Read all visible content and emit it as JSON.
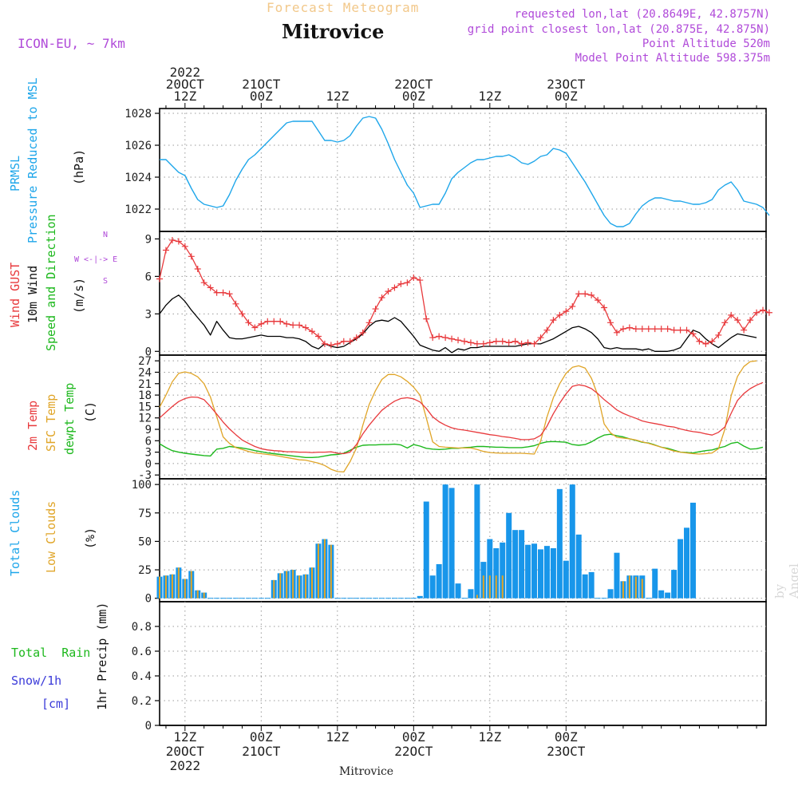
{
  "header": {
    "product": "Forecast Meteogram",
    "location": "Mitrovice",
    "model": "ICON-EU, ~ 7km",
    "requested": "requested lon,lat (20.8649E, 42.8757N)",
    "gridpoint": "grid point closest lon,lat (20.875E, 42.875N)",
    "point_altitude": "Point Altitude 520m",
    "model_altitude": "Model Point Altitude 598.375m",
    "footer_location": "Mitrovice",
    "watermark": "by Angel"
  },
  "time_axis": {
    "top_labels": [
      {
        "h": 12,
        "lines": [
          "2022",
          "20OCT",
          "12Z"
        ]
      },
      {
        "h": 24,
        "lines": [
          "21OCT",
          "00Z"
        ]
      },
      {
        "h": 36,
        "lines": [
          "12Z"
        ]
      },
      {
        "h": 48,
        "lines": [
          "22OCT",
          "00Z"
        ]
      },
      {
        "h": 60,
        "lines": [
          "12Z"
        ]
      },
      {
        "h": 72,
        "lines": [
          "23OCT",
          "00Z"
        ]
      }
    ],
    "bottom_labels": [
      {
        "h": 12,
        "lines": [
          "12Z",
          "20OCT",
          "2022"
        ]
      },
      {
        "h": 24,
        "lines": [
          "00Z",
          "21OCT"
        ]
      },
      {
        "h": 36,
        "lines": [
          "12Z"
        ]
      },
      {
        "h": 48,
        "lines": [
          "00Z",
          "22OCT"
        ]
      },
      {
        "h": 60,
        "lines": [
          "12Z"
        ]
      },
      {
        "h": 72,
        "lines": [
          "00Z",
          "23OCT"
        ]
      }
    ]
  },
  "labels": {
    "pressure": [
      "PRMSL",
      "Pressure Reduced to MSL",
      "(hPa)"
    ],
    "wind": [
      "Wind GUST",
      "10m Wind",
      "Speed and Direction",
      "(m/s)"
    ],
    "compass": [
      "N",
      "W <-|-> E",
      "S"
    ],
    "temp": [
      "2m Temp",
      "SFC Temp",
      "dewpt Temp",
      "(C)"
    ],
    "clouds": [
      "Total Clouds",
      "Low Clouds",
      "(%)"
    ],
    "precip": [
      "Total  Rain",
      "Snow/1h",
      "[cm]",
      "1hr Precip (mm)"
    ]
  },
  "colors": {
    "pressure": "#1ea6ea",
    "gust": "#e8393c",
    "wind": "#000000",
    "t2m": "#e8393c",
    "sfc": "#e0a528",
    "dewpt": "#1db81d",
    "total_clouds": "#1896ea",
    "low_clouds": "#e0a528",
    "rain": "#1db81d",
    "snow": "#3b3bd9",
    "violet": "#b04ad9"
  },
  "chart_data": [
    {
      "type": "line",
      "panel": "pressure",
      "ylabel": "(hPa)",
      "ylim": [
        1020.6,
        1028.3
      ],
      "yticks": [
        1022,
        1024,
        1026,
        1028
      ],
      "x_hours_start": 8,
      "x_step_hours": 1,
      "series": [
        {
          "name": "PRMSL",
          "values": [
            1025.1,
            1025.1,
            1024.7,
            1024.3,
            1024.1,
            1023.3,
            1022.6,
            1022.3,
            1022.2,
            1022.1,
            1022.2,
            1022.9,
            1023.8,
            1024.5,
            1025.1,
            1025.4,
            1025.8,
            1026.2,
            1026.6,
            1027,
            1027.4,
            1027.5,
            1027.5,
            1027.5,
            1027.5,
            1026.9,
            1026.3,
            1026.3,
            1026.2,
            1026.3,
            1026.6,
            1027.2,
            1027.7,
            1027.8,
            1027.7,
            1027,
            1026.1,
            1025.1,
            1024.3,
            1023.5,
            1023,
            1022.1,
            1022.2,
            1022.3,
            1022.3,
            1023,
            1023.9,
            1024.3,
            1024.6,
            1024.9,
            1025.1,
            1025.1,
            1025.2,
            1025.3,
            1025.3,
            1025.4,
            1025.2,
            1024.9,
            1024.8,
            1025,
            1025.3,
            1025.4,
            1025.8,
            1025.7,
            1025.5,
            1024.9,
            1024.3,
            1023.7,
            1023,
            1022.3,
            1021.6,
            1021.1,
            1020.9,
            1020.9,
            1021.1,
            1021.7,
            1022.2,
            1022.5,
            1022.7,
            1022.7,
            1022.6,
            1022.5,
            1022.5,
            1022.4,
            1022.3,
            1022.3,
            1022.4,
            1022.6,
            1023.2,
            1023.5,
            1023.7,
            1023.2,
            1022.5,
            1022.4,
            1022.3,
            1022.1,
            1021.6
          ]
        }
      ]
    },
    {
      "type": "line",
      "panel": "wind",
      "ylabel": "(m/s)",
      "ylim": [
        -0.3,
        9.6
      ],
      "yticks": [
        0,
        3,
        6,
        9
      ],
      "x_hours_start": 8,
      "x_step_hours": 1,
      "series": [
        {
          "name": "Wind GUST",
          "values": [
            5.8,
            8.1,
            8.9,
            8.8,
            8.4,
            7.6,
            6.6,
            5.5,
            5.1,
            4.7,
            4.7,
            4.6,
            3.8,
            3,
            2.3,
            1.9,
            2.2,
            2.4,
            2.4,
            2.4,
            2.2,
            2.1,
            2.1,
            1.9,
            1.6,
            1.2,
            0.6,
            0.5,
            0.6,
            0.8,
            0.8,
            1.1,
            1.5,
            2.3,
            3.4,
            4.3,
            4.8,
            5.1,
            5.4,
            5.5,
            5.9,
            5.7,
            2.6,
            1.1,
            1.2,
            1.1,
            1,
            0.9,
            0.8,
            0.7,
            0.6,
            0.6,
            0.7,
            0.8,
            0.8,
            0.7,
            0.8,
            0.6,
            0.7,
            0.6,
            1.1,
            1.7,
            2.5,
            2.9,
            3.2,
            3.6,
            4.6,
            4.6,
            4.5,
            4.1,
            3.5,
            2.3,
            1.5,
            1.8,
            1.9,
            1.8,
            1.8,
            1.8,
            1.8,
            1.8,
            1.8,
            1.7,
            1.7,
            1.7,
            1.4,
            0.8,
            0.6,
            0.8,
            1.3,
            2.3,
            2.9,
            2.5,
            1.7,
            2.5,
            3.1,
            3.3,
            3.1
          ]
        },
        {
          "name": "10m Wind",
          "values": [
            3,
            3.7,
            4.2,
            4.5,
            4,
            3.3,
            2.7,
            2.1,
            1.3,
            2.4,
            1.7,
            1.1,
            1,
            1,
            1.1,
            1.2,
            1.3,
            1.2,
            1.2,
            1.2,
            1.1,
            1.1,
            1,
            0.8,
            0.4,
            0.2,
            0.6,
            0.4,
            0.3,
            0.4,
            0.7,
            1,
            1.4,
            2,
            2.4,
            2.5,
            2.4,
            2.7,
            2.4,
            1.8,
            1.2,
            0.5,
            0.3,
            0.1,
            0,
            0.3,
            -0.1,
            0.2,
            0.1,
            0.3,
            0.3,
            0.4,
            0.4,
            0.4,
            0.4,
            0.4,
            0.4,
            0.5,
            0.6,
            0.6,
            0.6,
            0.8,
            1,
            1.3,
            1.6,
            1.9,
            2,
            1.8,
            1.5,
            1,
            0.3,
            0.2,
            0.3,
            0.2,
            0.2,
            0.2,
            0.1,
            0.2,
            0,
            0,
            0,
            0.1,
            0.3,
            1,
            1.7,
            1.5,
            1,
            0.6,
            0.3,
            0.7,
            1.1,
            1.4,
            1.3,
            1.2,
            1.1
          ]
        }
      ]
    },
    {
      "type": "line",
      "panel": "temperature",
      "ylabel": "(C)",
      "ylim": [
        -4,
        28.5
      ],
      "yticks": [
        -3,
        0,
        3,
        6,
        9,
        12,
        15,
        18,
        21,
        24,
        27
      ],
      "x_hours_start": 8,
      "x_step_hours": 1,
      "series": [
        {
          "name": "2m Temp",
          "values": [
            12,
            13.5,
            15,
            16.3,
            17.1,
            17.5,
            17.4,
            16.8,
            15,
            13,
            10.9,
            9.1,
            7.6,
            6.2,
            5.3,
            4.5,
            3.9,
            3.6,
            3.4,
            3.3,
            3.1,
            3.1,
            3,
            3,
            2.9,
            3,
            3,
            3.1,
            2.7,
            2.6,
            3,
            5,
            7.8,
            10.1,
            12.1,
            14,
            15.3,
            16.4,
            17.1,
            17.3,
            17,
            16.2,
            14.5,
            12.3,
            11,
            10.1,
            9.4,
            9,
            8.8,
            8.5,
            8.2,
            7.9,
            7.6,
            7.4,
            7.1,
            6.9,
            6.6,
            6.3,
            6.3,
            6.5,
            7.4,
            9.8,
            13.1,
            15.9,
            18.3,
            20.3,
            20.7,
            20.4,
            19.7,
            18.4,
            16.8,
            15.5,
            14.1,
            13.2,
            12.5,
            11.9,
            11.2,
            10.8,
            10.5,
            10.2,
            9.8,
            9.6,
            9.1,
            8.7,
            8.4,
            8.2,
            7.8,
            7.5,
            8.2,
            9.6,
            13.2,
            16.6,
            18.4,
            19.7,
            20.6,
            21.3
          ]
        },
        {
          "name": "SFC Temp",
          "values": [
            14.8,
            18,
            21.5,
            23.7,
            24.1,
            23.7,
            22.8,
            21,
            17.5,
            12.3,
            7,
            5.3,
            4.2,
            3.7,
            3.2,
            2.8,
            2.6,
            2.4,
            2.2,
            1.9,
            1.6,
            1.3,
            1,
            0.9,
            0.5,
            0.1,
            -0.5,
            -1.5,
            -2.1,
            -2.2,
            0.5,
            4.1,
            10.1,
            15.5,
            19.2,
            22.1,
            23.4,
            23.4,
            22.8,
            21.6,
            20.1,
            18,
            12,
            5.7,
            4.5,
            4.3,
            4.2,
            4.1,
            4.1,
            4.1,
            3.7,
            3.2,
            2.9,
            2.8,
            2.7,
            2.7,
            2.7,
            2.7,
            2.6,
            2.5,
            5.9,
            12.2,
            17.3,
            21,
            23.7,
            25.3,
            25.7,
            25.1,
            22.4,
            18,
            10.4,
            8.1,
            6.9,
            6.7,
            6.5,
            6.2,
            5.7,
            5.3,
            4.8,
            4.3,
            3.8,
            3.3,
            3,
            2.8,
            2.6,
            2.5,
            2.6,
            2.8,
            3.9,
            9,
            17.8,
            22.9,
            25.5,
            26.8,
            27
          ]
        },
        {
          "name": "dewpt Temp",
          "values": [
            5.2,
            4.2,
            3.4,
            3,
            2.7,
            2.5,
            2.3,
            2.1,
            2,
            3.8,
            4,
            4.5,
            4.3,
            4.1,
            3.8,
            3.4,
            3.1,
            2.8,
            2.6,
            2.4,
            2.2,
            2,
            1.8,
            1.6,
            1.6,
            1.7,
            2,
            2.3,
            2.4,
            2.7,
            3.5,
            4.3,
            4.8,
            4.9,
            4.9,
            5,
            5,
            5.1,
            4.9,
            4.1,
            5,
            4.6,
            4,
            3.8,
            3.7,
            3.8,
            4,
            4,
            4.2,
            4.3,
            4.5,
            4.5,
            4.4,
            4.3,
            4.3,
            4.2,
            4.2,
            4.2,
            4.4,
            4.7,
            5.3,
            5.7,
            5.8,
            5.7,
            5.6,
            5,
            4.8,
            5,
            5.7,
            6.7,
            7.5,
            7.7,
            7.3,
            7,
            6.5,
            6.1,
            5.6,
            5.4,
            4.9,
            4.3,
            4,
            3.5,
            3,
            2.9,
            2.8,
            3.1,
            3.4,
            3.6,
            4.1,
            4.5,
            5.3,
            5.6,
            4.6,
            3.8,
            3.9,
            4.3
          ]
        }
      ]
    },
    {
      "type": "bar",
      "panel": "clouds",
      "ylabel": "(%)",
      "ylim": [
        -3,
        105
      ],
      "yticks": [
        0,
        25,
        50,
        75,
        100
      ],
      "x_hours_start": 8,
      "x_step_hours": 1,
      "series": [
        {
          "name": "Total Clouds",
          "values": [
            19,
            20,
            21,
            27,
            17,
            24,
            7,
            5,
            0,
            0,
            0,
            0,
            0,
            0,
            0,
            0,
            0,
            0,
            16,
            22,
            24,
            25,
            20,
            21,
            27,
            48,
            52,
            47,
            0,
            0,
            0,
            0,
            0,
            0,
            0,
            0,
            0,
            0,
            0,
            0,
            0,
            2,
            85,
            20,
            30,
            100,
            97,
            13,
            0,
            8,
            100,
            32,
            52,
            44,
            49,
            75,
            60,
            60,
            47,
            48,
            43,
            46,
            44,
            96,
            33,
            100,
            56,
            21,
            23,
            0,
            0,
            8,
            40,
            15,
            20,
            20,
            20,
            0,
            26,
            7,
            5,
            25,
            52,
            62,
            84
          ]
        },
        {
          "name": "Low Clouds",
          "values": [
            19,
            20,
            21,
            27,
            17,
            24,
            7,
            5,
            0,
            0,
            0,
            0,
            0,
            0,
            0,
            0,
            0,
            0,
            16,
            22,
            24,
            25,
            20,
            21,
            27,
            48,
            52,
            47,
            0,
            0,
            0,
            0,
            0,
            0,
            0,
            0,
            0,
            0,
            0,
            0,
            0,
            0,
            0,
            0,
            0,
            0,
            0,
            0,
            0,
            0,
            3,
            20,
            20,
            20,
            20,
            0,
            0,
            0,
            0,
            0,
            0,
            0,
            0,
            0,
            0,
            0,
            0,
            0,
            0,
            0,
            0,
            0,
            0,
            15,
            20,
            19,
            17,
            0,
            0,
            0,
            0,
            0,
            0,
            0,
            0
          ]
        }
      ]
    },
    {
      "type": "bar",
      "panel": "precipitation",
      "ylabel": "1hr Precip (mm)",
      "ylim": [
        0,
        1
      ],
      "yticks": [
        0,
        0.2,
        0.4,
        0.6,
        0.8
      ],
      "series": [
        {
          "name": "Total Rain",
          "values": []
        },
        {
          "name": "Snow/1h",
          "values": []
        }
      ]
    }
  ]
}
